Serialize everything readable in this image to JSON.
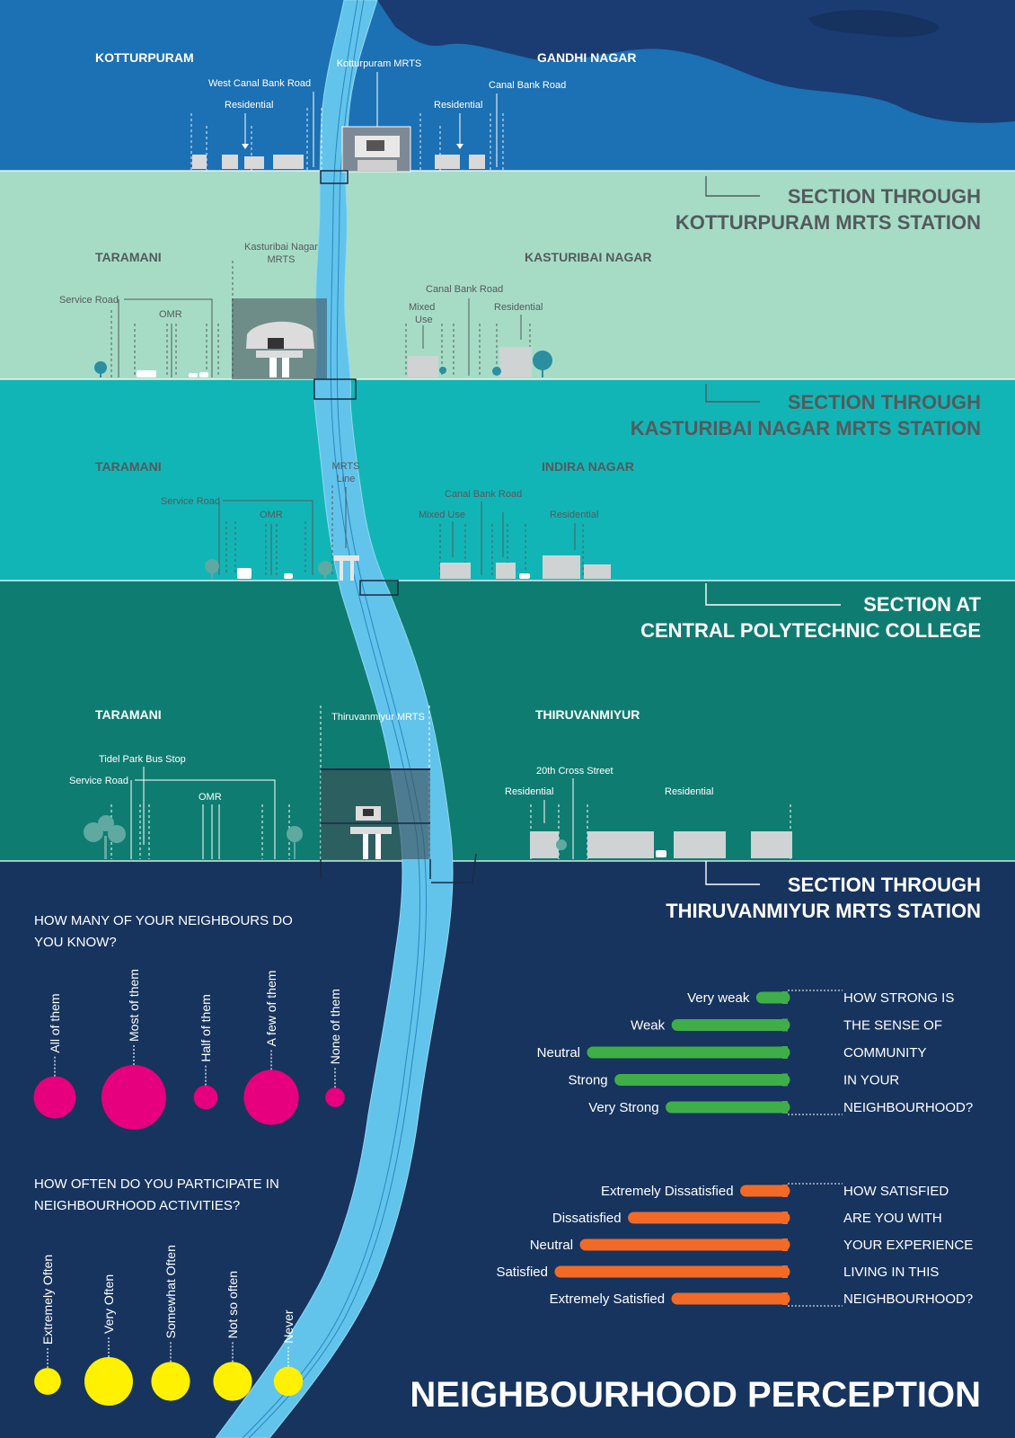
{
  "colors": {
    "band1": "#1c70b4",
    "band2": "#a6dcc6",
    "band3": "#12b5b5",
    "band4": "#0f7c71",
    "navy": "#17345f",
    "river": "#62c4ea",
    "pink": "#e6007e",
    "yellow": "#fff100",
    "green": "#3fae49",
    "orange": "#f26a25",
    "title_dark": "#545a5e",
    "white": "#ffffff"
  },
  "sections": [
    {
      "left_area": "KOTTURPURAM",
      "right_area": "GANDHI NAGAR",
      "station_label": "Kotturpuram MRTS",
      "labels": [
        "West Canal Bank Road",
        "Residential",
        "Residential",
        "Canal Bank Road"
      ],
      "title_lines": [
        "SECTION THROUGH",
        "KOTTURPURAM MRTS STATION"
      ]
    },
    {
      "left_area": "TARAMANI",
      "right_area": "KASTURIBAI NAGAR",
      "station_label_lines": [
        "Kasturibai Nagar",
        "MRTS"
      ],
      "labels": [
        "Service Road",
        "OMR",
        "Canal Bank Road",
        "Mixed",
        "Use",
        "Residential"
      ],
      "title_lines": [
        "SECTION THROUGH",
        "KASTURIBAI NAGAR MRTS STATION"
      ]
    },
    {
      "left_area": "TARAMANI",
      "right_area": "INDIRA NAGAR",
      "mrts_line_lines": [
        "MRTS",
        "Line"
      ],
      "labels": [
        "Service Road",
        "OMR",
        "Canal Bank Road",
        "Mixed Use",
        "Residential"
      ],
      "title_lines": [
        "SECTION AT",
        "CENTRAL POLYTECHNIC COLLEGE"
      ]
    },
    {
      "left_area": "TARAMANI",
      "right_area": "THIRUVANMIYUR",
      "station_label": "Thiruvanmiyur MRTS",
      "labels": [
        "Tidel Park Bus Stop",
        "Service Road",
        "OMR",
        "20th Cross Street",
        "Residential",
        "Residential"
      ],
      "title_lines": [
        "SECTION THROUGH",
        "THIRUVANMIYUR MRTS STATION"
      ]
    }
  ],
  "survey": {
    "q1": {
      "question_lines": [
        "HOW MANY OF YOUR NEIGHBOURS DO",
        "YOU KNOW?"
      ],
      "options": [
        "All of them",
        "Most of them",
        "Half of them",
        "A few of them",
        "None of them"
      ],
      "relative_sizes": [
        0.65,
        1.0,
        0.37,
        0.85,
        0.3
      ]
    },
    "q2": {
      "question_lines": [
        "HOW OFTEN DO YOU PARTICIPATE IN",
        "NEIGHBOURHOOD ACTIVITIES?"
      ],
      "options": [
        "Extremely Often",
        "Very Often",
        "Somewhat Often",
        "Not so often",
        "Never"
      ],
      "relative_sizes": [
        0.55,
        1.0,
        0.8,
        0.8,
        0.6
      ]
    },
    "q3": {
      "question_lines": [
        "HOW STRONG IS",
        "THE SENSE OF",
        "COMMUNITY",
        "IN YOUR",
        "NEIGHBOURHOOD?"
      ],
      "options": [
        "Very weak",
        "Weak",
        "Neutral",
        "Strong",
        "Very Strong"
      ],
      "relative_values": [
        0.14,
        0.57,
        1.0,
        0.86,
        0.6
      ]
    },
    "q4": {
      "question_lines": [
        "HOW SATISFIED",
        "ARE YOU WITH",
        "YOUR EXPERIENCE",
        "LIVING IN THIS",
        "NEIGHBOURHOOD?"
      ],
      "options": [
        "Extremely Dissatisfied",
        "Dissatisfied",
        "Neutral",
        "Satisfied",
        "Extremely Satisfied"
      ],
      "relative_values": [
        0.19,
        0.68,
        0.89,
        1.0,
        0.49
      ]
    }
  },
  "main_title": "NEIGHBOURHOOD PERCEPTION"
}
